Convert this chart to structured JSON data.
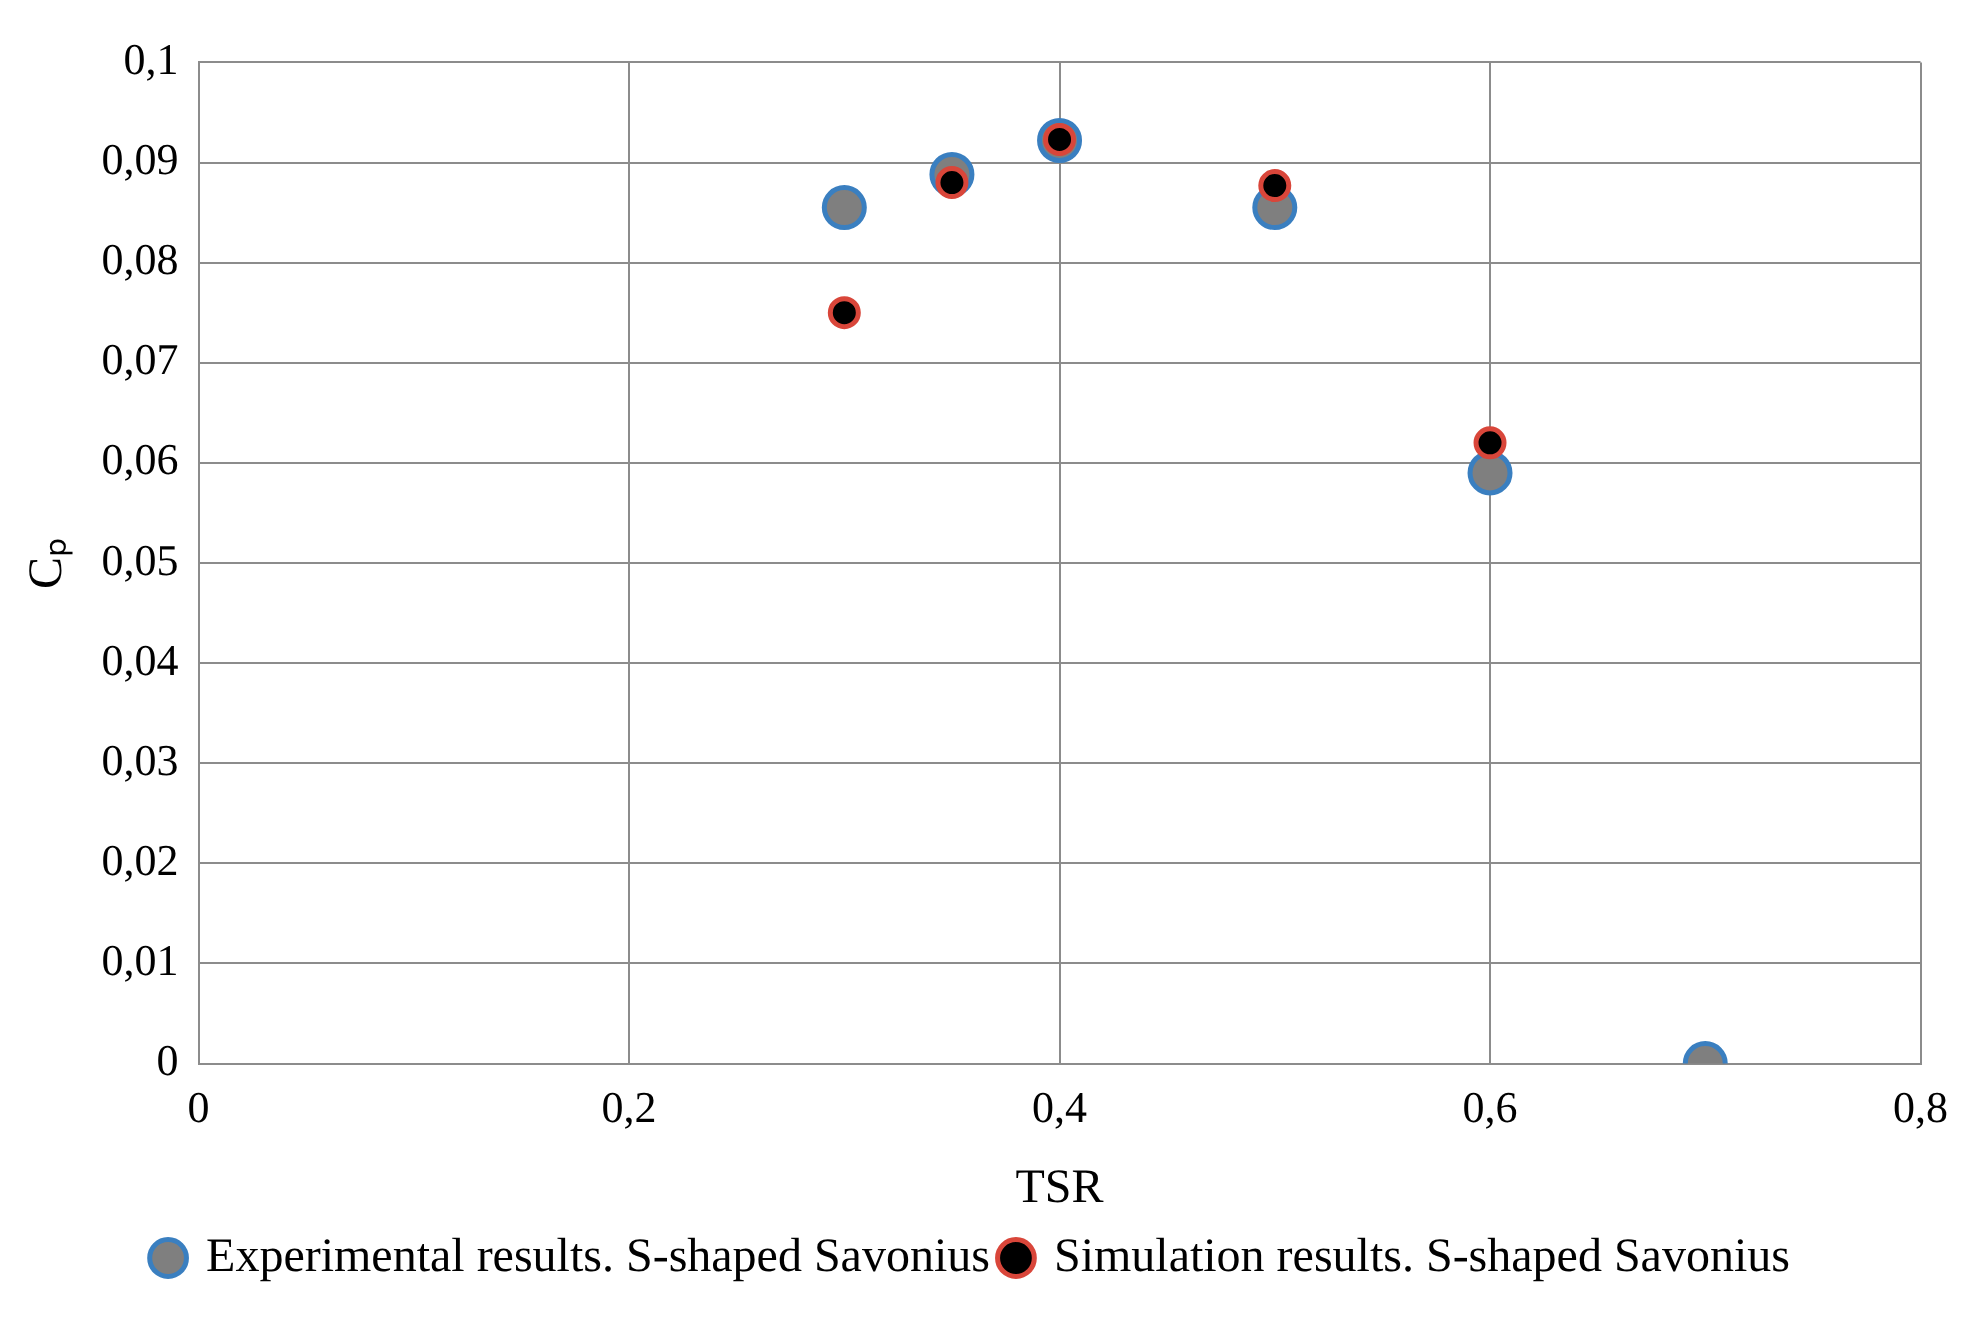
{
  "chart_data": {
    "type": "scatter",
    "xlabel": "TSR",
    "ylabel": "Cₚ",
    "xlim": [
      0,
      0.8
    ],
    "xticks": [
      0,
      {
        "value": 0.2,
        "label": "0,2"
      },
      {
        "value": 0.4,
        "label": "0,4"
      },
      {
        "value": 0.6,
        "label": "0,6"
      },
      {
        "value": 0.8,
        "label": "0,8"
      }
    ],
    "ylim": [
      0,
      0.1
    ],
    "yticks": [
      0,
      {
        "value": 0.01,
        "label": "0,01"
      },
      {
        "value": 0.02,
        "label": "0,02"
      },
      {
        "value": 0.03,
        "label": "0,03"
      },
      {
        "value": 0.04,
        "label": "0,04"
      },
      {
        "value": 0.05,
        "label": "0,05"
      },
      {
        "value": 0.06,
        "label": "0,06"
      },
      {
        "value": 0.07,
        "label": "0,07"
      },
      {
        "value": 0.08,
        "label": "0,08"
      },
      {
        "value": 0.09,
        "label": "0,09"
      },
      {
        "value": 0.1,
        "label": "0,1"
      }
    ],
    "grid": true,
    "legend": "bottom",
    "marker": "circle",
    "series": [
      {
        "name": "Experimental results. S-shaped Savonius",
        "color": "#7f7f7f",
        "x": [
          0.3,
          0.35,
          0.4,
          0.5,
          0.6,
          0.7
        ],
        "values": [
          0.0855,
          0.0888,
          0.0922,
          0.0855,
          0.059,
          0
        ]
      },
      {
        "name": "Simulation results. S-shaped Savonius",
        "color": "#000000",
        "x": [
          0.3,
          0.35,
          0.4,
          0.5,
          0.6
        ],
        "values": [
          0.075,
          0.088,
          0.0923,
          0.0877,
          0.062
        ]
      }
    ]
  }
}
